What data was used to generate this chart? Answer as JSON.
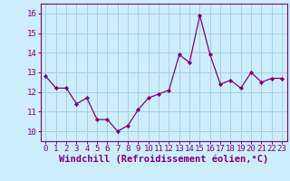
{
  "x": [
    0,
    1,
    2,
    3,
    4,
    5,
    6,
    7,
    8,
    9,
    10,
    11,
    12,
    13,
    14,
    15,
    16,
    17,
    18,
    19,
    20,
    21,
    22,
    23
  ],
  "y": [
    12.8,
    12.2,
    12.2,
    11.4,
    11.7,
    10.6,
    10.6,
    10.0,
    10.3,
    11.1,
    11.7,
    11.9,
    12.1,
    13.9,
    13.5,
    15.9,
    13.9,
    12.4,
    12.6,
    12.2,
    13.0,
    12.5,
    12.7,
    12.7
  ],
  "line_color": "#800080",
  "marker_color": "#800080",
  "bg_color": "#cceeff",
  "grid_color": "#aaccdd",
  "xlabel": "Windchill (Refroidissement éolien,°C)",
  "xlabel_color": "#800080",
  "ylim": [
    9.5,
    16.5
  ],
  "xlim": [
    -0.5,
    23.5
  ],
  "yticks": [
    10,
    11,
    12,
    13,
    14,
    15,
    16
  ],
  "xtick_labels": [
    "0",
    "1",
    "2",
    "3",
    "4",
    "5",
    "6",
    "7",
    "8",
    "9",
    "10",
    "11",
    "12",
    "13",
    "14",
    "15",
    "16",
    "17",
    "18",
    "19",
    "20",
    "21",
    "22",
    "23"
  ],
  "tick_color": "#800080",
  "tick_fontsize": 6.5,
  "xlabel_fontsize": 7.5,
  "spine_color": "#800080"
}
